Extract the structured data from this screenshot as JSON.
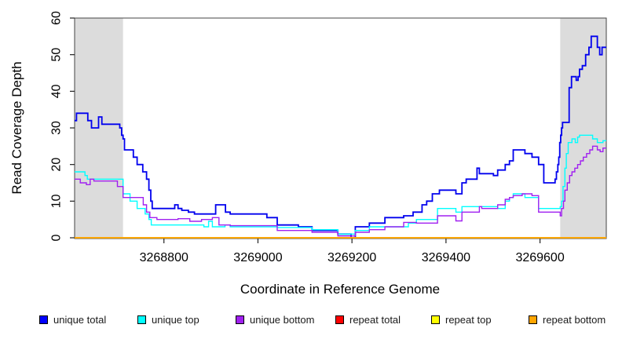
{
  "chart_data": {
    "type": "line",
    "title": "",
    "xlabel": "Coordinate in Reference Genome",
    "ylabel": "Read Coverage Depth",
    "xlim": [
      3268610,
      3269741
    ],
    "ylim": [
      0,
      60
    ],
    "x_ticks": [
      3268800,
      3269000,
      3269200,
      3269400,
      3269600
    ],
    "y_ticks": [
      0,
      10,
      20,
      30,
      40,
      50,
      60
    ],
    "grid": false,
    "legend_position": "bottom",
    "highlight_regions": [
      {
        "x0": 3268610,
        "x1": 3268713,
        "color": "#dcdcdc"
      },
      {
        "x0": 3269643,
        "x1": 3269741,
        "color": "#dcdcdc"
      }
    ],
    "series": [
      {
        "name": "unique total",
        "color": "#0000ee",
        "width": 1.8,
        "points": [
          [
            3268610,
            32
          ],
          [
            3268614,
            34
          ],
          [
            3268638,
            32
          ],
          [
            3268646,
            30
          ],
          [
            3268661,
            33
          ],
          [
            3268668,
            31
          ],
          [
            3268701,
            31
          ],
          [
            3268706,
            30
          ],
          [
            3268710,
            28
          ],
          [
            3268713,
            27
          ],
          [
            3268716,
            24
          ],
          [
            3268735,
            22
          ],
          [
            3268743,
            20
          ],
          [
            3268755,
            18
          ],
          [
            3268763,
            16
          ],
          [
            3268768,
            13
          ],
          [
            3268772,
            10
          ],
          [
            3268775,
            8
          ],
          [
            3268823,
            9
          ],
          [
            3268830,
            8
          ],
          [
            3268838,
            7.5
          ],
          [
            3268852,
            7
          ],
          [
            3268865,
            6.5
          ],
          [
            3268910,
            9
          ],
          [
            3268931,
            7
          ],
          [
            3268941,
            6.5
          ],
          [
            3269019,
            5.5
          ],
          [
            3269041,
            3.5
          ],
          [
            3269086,
            3
          ],
          [
            3269115,
            2
          ],
          [
            3269170,
            1
          ],
          [
            3269198,
            0
          ],
          [
            3269207,
            3
          ],
          [
            3269237,
            4
          ],
          [
            3269270,
            5.5
          ],
          [
            3269310,
            6
          ],
          [
            3269330,
            7
          ],
          [
            3269349,
            9
          ],
          [
            3269359,
            10
          ],
          [
            3269371,
            12
          ],
          [
            3269386,
            13
          ],
          [
            3269421,
            12
          ],
          [
            3269434,
            15
          ],
          [
            3269443,
            16
          ],
          [
            3269466,
            19
          ],
          [
            3269471,
            17.5
          ],
          [
            3269501,
            17
          ],
          [
            3269510,
            18.5
          ],
          [
            3269526,
            20
          ],
          [
            3269535,
            21
          ],
          [
            3269543,
            24
          ],
          [
            3269568,
            23
          ],
          [
            3269583,
            22
          ],
          [
            3269597,
            20
          ],
          [
            3269608,
            15
          ],
          [
            3269632,
            16
          ],
          [
            3269635,
            18
          ],
          [
            3269638,
            20
          ],
          [
            3269640,
            22
          ],
          [
            3269642,
            26
          ],
          [
            3269644,
            28
          ],
          [
            3269646,
            30
          ],
          [
            3269648,
            31.5
          ],
          [
            3269662,
            41
          ],
          [
            3269667,
            44
          ],
          [
            3269677,
            43
          ],
          [
            3269681,
            44
          ],
          [
            3269684,
            46
          ],
          [
            3269690,
            47
          ],
          [
            3269697,
            50
          ],
          [
            3269704,
            52
          ],
          [
            3269709,
            55
          ],
          [
            3269722,
            52
          ],
          [
            3269727,
            50
          ],
          [
            3269732,
            52
          ]
        ]
      },
      {
        "name": "unique top",
        "color": "#00ffff",
        "width": 1.4,
        "points": [
          [
            3268610,
            18
          ],
          [
            3268632,
            17
          ],
          [
            3268637,
            16
          ],
          [
            3268713,
            12
          ],
          [
            3268728,
            10
          ],
          [
            3268743,
            8
          ],
          [
            3268760,
            6.5
          ],
          [
            3268768,
            5
          ],
          [
            3268773,
            3.5
          ],
          [
            3268885,
            3
          ],
          [
            3268895,
            4.5
          ],
          [
            3268903,
            3
          ],
          [
            3268930,
            3.5
          ],
          [
            3268941,
            3
          ],
          [
            3269041,
            2.8
          ],
          [
            3269115,
            2.2
          ],
          [
            3269170,
            1
          ],
          [
            3269207,
            2
          ],
          [
            3269237,
            3
          ],
          [
            3269320,
            4
          ],
          [
            3269337,
            5
          ],
          [
            3269382,
            8
          ],
          [
            3269421,
            7
          ],
          [
            3269434,
            8.5
          ],
          [
            3269510,
            8
          ],
          [
            3269526,
            10
          ],
          [
            3269535,
            11
          ],
          [
            3269543,
            12
          ],
          [
            3269568,
            11
          ],
          [
            3269597,
            8
          ],
          [
            3269643,
            8.5
          ],
          [
            3269646,
            10
          ],
          [
            3269649,
            14
          ],
          [
            3269653,
            19
          ],
          [
            3269656,
            23
          ],
          [
            3269660,
            26
          ],
          [
            3269668,
            27
          ],
          [
            3269675,
            26
          ],
          [
            3269680,
            27.5
          ],
          [
            3269684,
            28
          ],
          [
            3269712,
            27
          ],
          [
            3269722,
            26
          ],
          [
            3269734,
            26.5
          ]
        ]
      },
      {
        "name": "unique bottom",
        "color": "#a020f0",
        "width": 1.4,
        "points": [
          [
            3268610,
            16
          ],
          [
            3268622,
            15
          ],
          [
            3268635,
            14.5
          ],
          [
            3268643,
            16
          ],
          [
            3268651,
            15.5
          ],
          [
            3268701,
            14
          ],
          [
            3268713,
            11
          ],
          [
            3268756,
            9
          ],
          [
            3268763,
            7
          ],
          [
            3268770,
            5.5
          ],
          [
            3268785,
            5
          ],
          [
            3268830,
            5.2
          ],
          [
            3268855,
            4.5
          ],
          [
            3268880,
            5
          ],
          [
            3268903,
            5.5
          ],
          [
            3268917,
            3.5
          ],
          [
            3268941,
            3.3
          ],
          [
            3269041,
            2
          ],
          [
            3269115,
            1.5
          ],
          [
            3269170,
            0.5
          ],
          [
            3269207,
            1.5
          ],
          [
            3269237,
            2.2
          ],
          [
            3269270,
            3
          ],
          [
            3269310,
            4.2
          ],
          [
            3269337,
            4
          ],
          [
            3269382,
            6
          ],
          [
            3269421,
            4.6
          ],
          [
            3269434,
            7
          ],
          [
            3269471,
            8.5
          ],
          [
            3269476,
            8
          ],
          [
            3269510,
            9
          ],
          [
            3269526,
            10.5
          ],
          [
            3269535,
            11
          ],
          [
            3269543,
            11.5
          ],
          [
            3269562,
            12
          ],
          [
            3269583,
            11.5
          ],
          [
            3269597,
            7
          ],
          [
            3269643,
            6
          ],
          [
            3269646,
            8
          ],
          [
            3269650,
            10
          ],
          [
            3269653,
            13
          ],
          [
            3269658,
            15
          ],
          [
            3269663,
            17
          ],
          [
            3269668,
            18
          ],
          [
            3269674,
            19
          ],
          [
            3269680,
            20
          ],
          [
            3269686,
            21
          ],
          [
            3269692,
            22
          ],
          [
            3269699,
            23
          ],
          [
            3269706,
            24
          ],
          [
            3269712,
            25
          ],
          [
            3269722,
            24
          ],
          [
            3269728,
            23.5
          ],
          [
            3269734,
            24.5
          ]
        ]
      },
      {
        "name": "repeat total",
        "color": "#ff0000",
        "width": 1.4,
        "points": [
          [
            3268610,
            0
          ]
        ]
      },
      {
        "name": "repeat top",
        "color": "#ffff00",
        "width": 1.4,
        "points": [
          [
            3268610,
            0
          ]
        ]
      },
      {
        "name": "repeat bottom",
        "color": "#ffa500",
        "width": 1.7,
        "points": [
          [
            3268610,
            0
          ]
        ]
      }
    ]
  },
  "legend": {
    "items": [
      {
        "label": "unique total",
        "color": "#0000ff"
      },
      {
        "label": "unique top",
        "color": "#00ffff"
      },
      {
        "label": "unique bottom",
        "color": "#a020f0"
      },
      {
        "label": "repeat total",
        "color": "#ff0000"
      },
      {
        "label": "repeat top",
        "color": "#ffff00"
      },
      {
        "label": "repeat bottom",
        "color": "#ffa500"
      }
    ]
  }
}
